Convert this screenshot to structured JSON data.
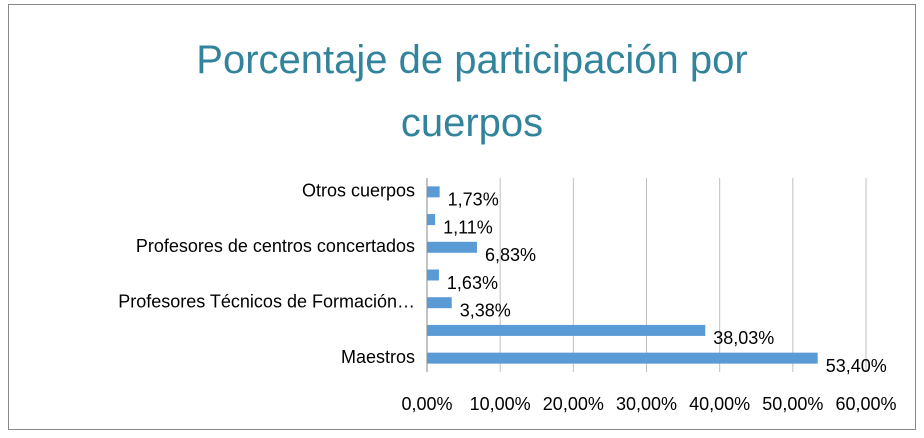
{
  "chart_data": {
    "type": "bar",
    "orientation": "horizontal",
    "title": "Porcentaje de participación por cuerpos",
    "categories": [
      "Maestros",
      null,
      "Profesores Técnicos de Formación…",
      null,
      "Profesores de centros concertados",
      null,
      "Otros cuerpos"
    ],
    "values": [
      53.4,
      38.03,
      3.38,
      1.63,
      6.83,
      1.11,
      1.73
    ],
    "value_labels": [
      "53,40%",
      "38,03%",
      "3,38%",
      "1,63%",
      "6,83%",
      "1,11%",
      "1,73%"
    ],
    "color": "#5b9bd5",
    "xlim": [
      0,
      60
    ],
    "xticks": [
      {
        "value": 0,
        "label": "0,00%"
      },
      {
        "value": 10,
        "label": "10,00%"
      },
      {
        "value": 20,
        "label": "20,00%"
      },
      {
        "value": 30,
        "label": "30,00%"
      },
      {
        "value": 40,
        "label": "40,00%"
      },
      {
        "value": 50,
        "label": "50,00%"
      },
      {
        "value": 60,
        "label": "60,00%"
      }
    ],
    "grid": true
  }
}
